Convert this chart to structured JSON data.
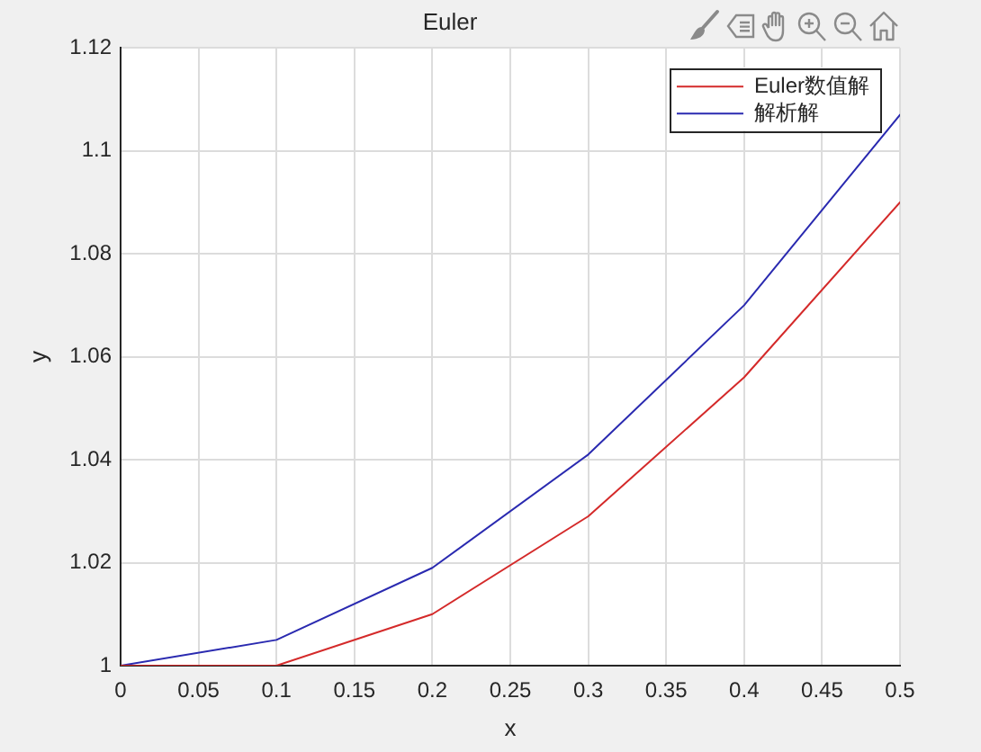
{
  "chart_data": {
    "type": "line",
    "title": "Euler",
    "xlabel": "x",
    "ylabel": "y",
    "x": [
      0,
      0.1,
      0.2,
      0.3,
      0.4,
      0.5
    ],
    "series": [
      {
        "name": "Euler数值解",
        "color": "#d42a2a",
        "values": [
          1,
          1,
          1.01,
          1.029,
          1.056,
          1.09
        ]
      },
      {
        "name": "解析解",
        "color": "#2a2ab0",
        "values": [
          1,
          1.005,
          1.019,
          1.041,
          1.07,
          1.107
        ]
      }
    ],
    "xlim": [
      0,
      0.5
    ],
    "xticks": [
      0,
      0.05,
      0.1,
      0.15,
      0.2,
      0.25,
      0.3,
      0.35,
      0.4,
      0.45,
      0.5
    ],
    "ylim": [
      1,
      1.12
    ],
    "yticks": [
      1,
      1.02,
      1.04,
      1.06,
      1.08,
      1.1,
      1.12
    ],
    "grid": true,
    "legend": "top right",
    "line_style": "solid"
  }
}
